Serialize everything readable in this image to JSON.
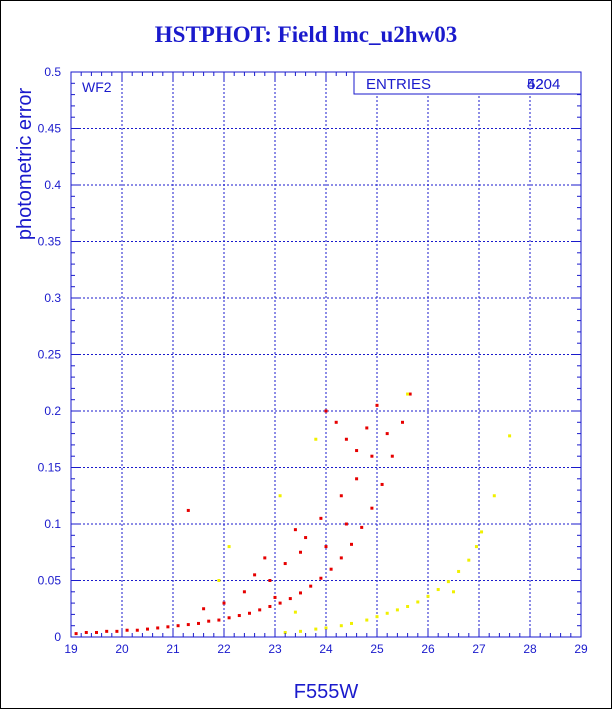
{
  "window": {
    "title": "HSTPHOT: Field lmc_u2hw03"
  },
  "chart_data": {
    "type": "scatter",
    "title": "HSTPHOT: Field lmc_u2hw03",
    "xlabel": "F555W",
    "ylabel": "photometric error",
    "xlim": [
      19,
      29
    ],
    "ylim": [
      0,
      0.5
    ],
    "xticks": [
      "19",
      "20",
      "21",
      "22",
      "23",
      "24",
      "25",
      "26",
      "27",
      "28",
      "29"
    ],
    "yticks": [
      "0",
      "0.05",
      "0.1",
      "0.15",
      "0.2",
      "0.25",
      "0.3",
      "0.35",
      "0.4",
      "0.45",
      "0.5"
    ],
    "grid": true,
    "panel_label": "WF2",
    "stats_box": {
      "label": "ENTRIES",
      "value": "5204",
      "overprint": "42"
    },
    "colors": {
      "axis": "#1a1acc",
      "grid": "#1a1acc",
      "red_series": "#e60000",
      "yellow_series": "#f0f000"
    },
    "series": [
      {
        "color": "red",
        "points": [
          [
            19.1,
            0.003
          ],
          [
            19.3,
            0.004
          ],
          [
            19.5,
            0.004
          ],
          [
            19.7,
            0.005
          ],
          [
            19.9,
            0.005
          ],
          [
            20.1,
            0.006
          ],
          [
            20.3,
            0.006
          ],
          [
            20.5,
            0.007
          ],
          [
            20.7,
            0.008
          ],
          [
            20.9,
            0.009
          ],
          [
            21.1,
            0.01
          ],
          [
            21.3,
            0.011
          ],
          [
            21.5,
            0.012
          ],
          [
            21.7,
            0.014
          ],
          [
            21.9,
            0.015
          ],
          [
            22.1,
            0.017
          ],
          [
            22.3,
            0.019
          ],
          [
            22.5,
            0.021
          ],
          [
            22.7,
            0.024
          ],
          [
            22.9,
            0.027
          ],
          [
            23.1,
            0.03
          ],
          [
            23.3,
            0.034
          ],
          [
            23.5,
            0.039
          ],
          [
            23.7,
            0.045
          ],
          [
            23.9,
            0.052
          ],
          [
            24.1,
            0.06
          ],
          [
            24.3,
            0.07
          ],
          [
            24.5,
            0.082
          ],
          [
            24.7,
            0.097
          ],
          [
            24.9,
            0.114
          ],
          [
            25.1,
            0.135
          ],
          [
            25.3,
            0.16
          ],
          [
            25.5,
            0.19
          ],
          [
            25.65,
            0.215
          ],
          [
            24.0,
            0.2
          ],
          [
            24.2,
            0.19
          ],
          [
            24.4,
            0.175
          ],
          [
            24.6,
            0.165
          ],
          [
            24.8,
            0.185
          ],
          [
            25.0,
            0.205
          ],
          [
            23.4,
            0.095
          ],
          [
            23.6,
            0.088
          ],
          [
            23.9,
            0.105
          ],
          [
            24.3,
            0.125
          ],
          [
            24.6,
            0.14
          ],
          [
            24.9,
            0.16
          ],
          [
            22.9,
            0.05
          ],
          [
            23.2,
            0.065
          ],
          [
            23.5,
            0.075
          ],
          [
            22.4,
            0.04
          ],
          [
            22.6,
            0.055
          ],
          [
            22.0,
            0.03
          ],
          [
            21.6,
            0.025
          ],
          [
            21.3,
            0.112
          ],
          [
            22.8,
            0.07
          ],
          [
            23.0,
            0.035
          ],
          [
            24.0,
            0.08
          ],
          [
            24.4,
            0.1
          ],
          [
            25.2,
            0.18
          ]
        ]
      },
      {
        "color": "yellow",
        "points": [
          [
            23.2,
            0.004
          ],
          [
            23.5,
            0.005
          ],
          [
            23.8,
            0.007
          ],
          [
            24.0,
            0.008
          ],
          [
            24.3,
            0.01
          ],
          [
            24.5,
            0.012
          ],
          [
            24.8,
            0.015
          ],
          [
            25.0,
            0.018
          ],
          [
            25.2,
            0.021
          ],
          [
            25.4,
            0.024
          ],
          [
            25.6,
            0.027
          ],
          [
            25.8,
            0.031
          ],
          [
            26.0,
            0.036
          ],
          [
            26.2,
            0.042
          ],
          [
            26.4,
            0.049
          ],
          [
            26.6,
            0.058
          ],
          [
            26.8,
            0.068
          ],
          [
            26.95,
            0.08
          ],
          [
            27.05,
            0.093
          ],
          [
            25.6,
            0.215
          ],
          [
            27.6,
            0.178
          ],
          [
            27.3,
            0.125
          ],
          [
            23.1,
            0.125
          ],
          [
            22.1,
            0.08
          ],
          [
            23.8,
            0.175
          ],
          [
            23.4,
            0.022
          ],
          [
            21.9,
            0.05
          ],
          [
            26.5,
            0.04
          ]
        ]
      }
    ]
  }
}
